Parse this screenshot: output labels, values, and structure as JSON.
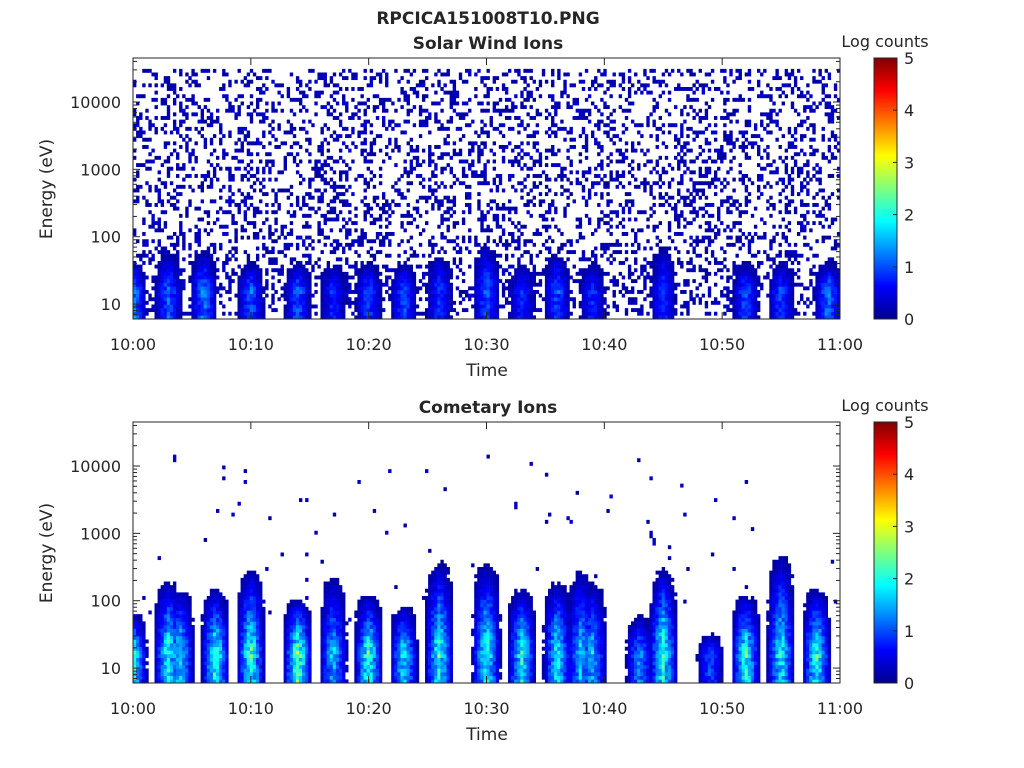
{
  "figure_title": "RPCICA151008T10.PNG",
  "colormap": "jet",
  "chart_data": [
    {
      "type": "heatmap",
      "title": "Solar Wind Ions",
      "xlabel": "Time",
      "ylabel": "Energy (eV)",
      "x_ticks": [
        "10:00",
        "10:10",
        "10:20",
        "10:30",
        "10:40",
        "10:50",
        "11:00"
      ],
      "xlim": [
        "10:00",
        "11:00"
      ],
      "yscale": "log",
      "ylim": [
        6,
        45000
      ],
      "y_ticks": [
        10,
        100,
        1000,
        10000
      ],
      "y_tick_labels": [
        "10",
        "100",
        "1000",
        "10000"
      ],
      "colorbar": {
        "label": "Log counts",
        "range": [
          0,
          5
        ],
        "ticks": [
          0,
          1,
          2,
          3,
          4,
          5
        ]
      },
      "bursts": [
        {
          "t": "10:00",
          "emax": 40,
          "peak": 2.0
        },
        {
          "t": "10:03",
          "emax": 60,
          "peak": 1.6
        },
        {
          "t": "10:06",
          "emax": 60,
          "peak": 1.8
        },
        {
          "t": "10:10",
          "emax": 40,
          "peak": 1.6
        },
        {
          "t": "10:14",
          "emax": 40,
          "peak": 1.6
        },
        {
          "t": "10:17",
          "emax": 40,
          "peak": 1.2
        },
        {
          "t": "10:20",
          "emax": 40,
          "peak": 1.5
        },
        {
          "t": "10:23",
          "emax": 40,
          "peak": 1.5
        },
        {
          "t": "10:26",
          "emax": 60,
          "peak": 1.3
        },
        {
          "t": "10:30",
          "emax": 80,
          "peak": 1.6
        },
        {
          "t": "10:33",
          "emax": 40,
          "peak": 1.2
        },
        {
          "t": "10:36",
          "emax": 60,
          "peak": 1.5
        },
        {
          "t": "10:39",
          "emax": 40,
          "peak": 1.2
        },
        {
          "t": "10:45",
          "emax": 80,
          "peak": 1.3
        },
        {
          "t": "10:52",
          "emax": 40,
          "peak": 1.5
        },
        {
          "t": "10:55",
          "emax": 40,
          "peak": 1.4
        },
        {
          "t": "10:59",
          "emax": 40,
          "peak": 1.8
        }
      ],
      "background": {
        "emin": 7,
        "emax": 30000,
        "level": 0.5
      }
    },
    {
      "type": "heatmap",
      "title": "Cometary Ions",
      "xlabel": "Time",
      "ylabel": "Energy (eV)",
      "x_ticks": [
        "10:00",
        "10:10",
        "10:20",
        "10:30",
        "10:40",
        "10:50",
        "11:00"
      ],
      "xlim": [
        "10:00",
        "11:00"
      ],
      "yscale": "log",
      "ylim": [
        6,
        45000
      ],
      "y_ticks": [
        10,
        100,
        1000,
        10000
      ],
      "y_tick_labels": [
        "10",
        "100",
        "1000",
        "10000"
      ],
      "colorbar": {
        "label": "Log counts",
        "range": [
          0,
          5
        ],
        "ticks": [
          0,
          1,
          2,
          3,
          4,
          5
        ]
      },
      "bursts": [
        {
          "t": "10:00",
          "emax": 60,
          "peak": 3.0
        },
        {
          "t": "10:03",
          "emax": 200,
          "peak": 2.8
        },
        {
          "t": "10:04",
          "emax": 150,
          "peak": 2.5
        },
        {
          "t": "10:07",
          "emax": 150,
          "peak": 3.0
        },
        {
          "t": "10:10",
          "emax": 300,
          "peak": 3.0
        },
        {
          "t": "10:14",
          "emax": 100,
          "peak": 3.4
        },
        {
          "t": "10:17",
          "emax": 250,
          "peak": 2.2
        },
        {
          "t": "10:20",
          "emax": 120,
          "peak": 3.0
        },
        {
          "t": "10:23",
          "emax": 80,
          "peak": 2.6
        },
        {
          "t": "10:26",
          "emax": 400,
          "peak": 2.9
        },
        {
          "t": "10:30",
          "emax": 400,
          "peak": 2.9
        },
        {
          "t": "10:33",
          "emax": 150,
          "peak": 2.8
        },
        {
          "t": "10:36",
          "emax": 200,
          "peak": 2.7
        },
        {
          "t": "10:38",
          "emax": 300,
          "peak": 2.3
        },
        {
          "t": "10:39",
          "emax": 200,
          "peak": 2.2
        },
        {
          "t": "10:43",
          "emax": 60,
          "peak": 2.0
        },
        {
          "t": "10:45",
          "emax": 300,
          "peak": 3.0
        },
        {
          "t": "10:49",
          "emax": 30,
          "peak": 1.5
        },
        {
          "t": "10:52",
          "emax": 120,
          "peak": 3.0
        },
        {
          "t": "10:55",
          "emax": 500,
          "peak": 2.7
        },
        {
          "t": "10:58",
          "emax": 150,
          "peak": 2.9
        }
      ],
      "background": {
        "emin": 50,
        "emax": 15000,
        "level": 0.3
      }
    }
  ]
}
